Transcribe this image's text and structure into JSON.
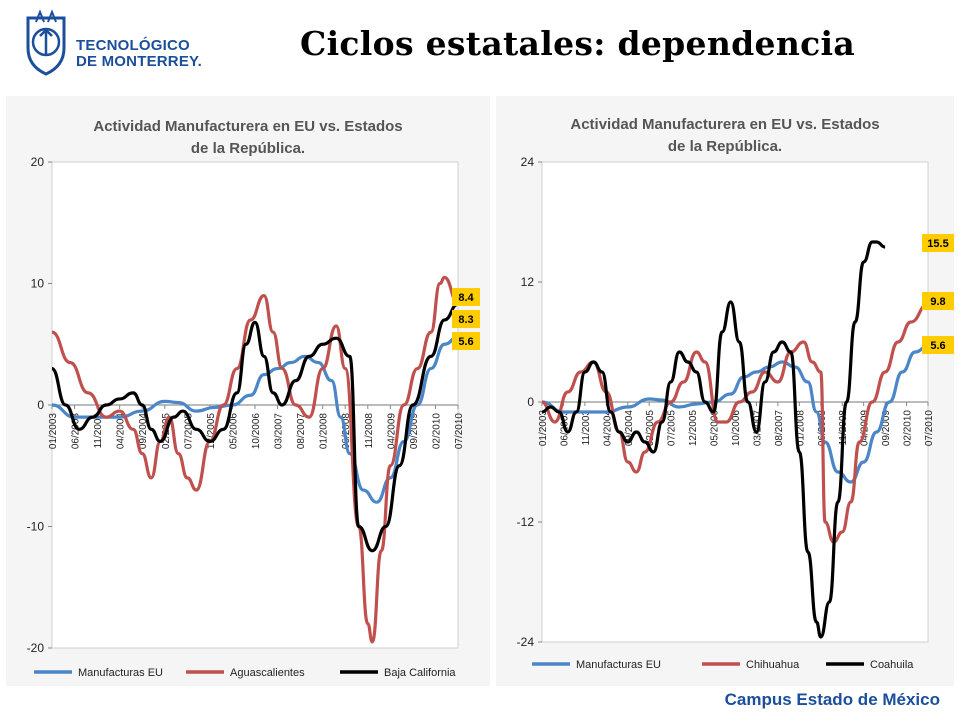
{
  "logo": {
    "line1": "TECNOLÓGICO",
    "line2": "DE MONTERREY."
  },
  "slide_title": "Ciclos estatales: dependencia",
  "footer": "Campus Estado de México",
  "colors": {
    "blue": "#4a86c8",
    "red": "#c0504d",
    "black": "#000000",
    "label_bg": "#ffcc00",
    "logo_blue": "#1b4f9c"
  },
  "chart_data": [
    {
      "type": "line",
      "title_line1": "Actividad Manufacturera  en EU vs. Estados",
      "title_line2": "de la República.",
      "xlabel": "",
      "ylabel": "",
      "ylim": [
        -20,
        20
      ],
      "yticks": [
        "20",
        "10",
        "0",
        "-10",
        "-20"
      ],
      "ytick_values": [
        20,
        10,
        0,
        -10,
        -20
      ],
      "x_tick_labels": [
        "01/2003",
        "06/2003",
        "11/2003",
        "04/2004",
        "09/2004",
        "02/2005",
        "07/2005",
        "12/2005",
        "05/2006",
        "10/2006",
        "03/2007",
        "08/2007",
        "01/2008",
        "06/2008",
        "11/2008",
        "04/2009",
        "09/2009",
        "02/2010",
        "07/2010"
      ],
      "x_range": [
        0,
        90
      ],
      "end_labels": [
        "8.4",
        "8.3",
        "5.6"
      ],
      "end_label_values": [
        8.4,
        8.3,
        5.6
      ],
      "legend": [
        "Manufacturas EU",
        "Aguascalientes",
        "Baja California"
      ],
      "series": [
        {
          "name": "Manufacturas EU",
          "color": "#4a86c8",
          "points": [
            [
              0,
              0
            ],
            [
              5,
              -1
            ],
            [
              10,
              -1
            ],
            [
              15,
              -1
            ],
            [
              20,
              -0.5
            ],
            [
              25,
              0.3
            ],
            [
              28,
              0.2
            ],
            [
              32,
              -0.5
            ],
            [
              36,
              -0.2
            ],
            [
              40,
              0
            ],
            [
              44,
              0.8
            ],
            [
              47,
              2.5
            ],
            [
              50,
              3
            ],
            [
              53,
              3.5
            ],
            [
              56,
              4
            ],
            [
              59,
              3.5
            ],
            [
              62,
              2
            ],
            [
              64,
              -1
            ],
            [
              66,
              -4
            ],
            [
              69,
              -7
            ],
            [
              72,
              -8
            ],
            [
              75,
              -6
            ],
            [
              78,
              -3
            ],
            [
              81,
              0
            ],
            [
              84,
              3
            ],
            [
              87,
              5
            ],
            [
              90,
              5.6
            ]
          ]
        },
        {
          "name": "Aguascalientes",
          "color": "#c0504d",
          "points": [
            [
              0,
              6
            ],
            [
              4,
              3.5
            ],
            [
              8,
              1
            ],
            [
              12,
              -1
            ],
            [
              15,
              -0.5
            ],
            [
              18,
              -2
            ],
            [
              20,
              -4
            ],
            [
              22,
              -6
            ],
            [
              24,
              -3
            ],
            [
              26,
              -1
            ],
            [
              28,
              -4
            ],
            [
              30,
              -6
            ],
            [
              32,
              -7
            ],
            [
              35,
              -3
            ],
            [
              38,
              0
            ],
            [
              41,
              3
            ],
            [
              44,
              7
            ],
            [
              47,
              9
            ],
            [
              49,
              6
            ],
            [
              51,
              3
            ],
            [
              54,
              0
            ],
            [
              57,
              -1
            ],
            [
              60,
              3
            ],
            [
              63,
              6.5
            ],
            [
              65,
              3
            ],
            [
              68,
              -10
            ],
            [
              70,
              -18
            ],
            [
              71,
              -19.5
            ],
            [
              73,
              -12
            ],
            [
              75,
              -5
            ],
            [
              78,
              0
            ],
            [
              81,
              3
            ],
            [
              84,
              6
            ],
            [
              86,
              10
            ],
            [
              87,
              10.5
            ],
            [
              90,
              8.4
            ]
          ]
        },
        {
          "name": "Baja California",
          "color": "#000000",
          "points": [
            [
              0,
              3
            ],
            [
              3,
              0
            ],
            [
              6,
              -2
            ],
            [
              9,
              -1
            ],
            [
              12,
              0
            ],
            [
              15,
              0.5
            ],
            [
              18,
              1
            ],
            [
              20,
              0
            ],
            [
              22,
              -2
            ],
            [
              24,
              -3
            ],
            [
              27,
              -1
            ],
            [
              29,
              -0.5
            ],
            [
              32,
              -2
            ],
            [
              35,
              -3
            ],
            [
              38,
              -2
            ],
            [
              41,
              1
            ],
            [
              43,
              5
            ],
            [
              45,
              6.8
            ],
            [
              47,
              4
            ],
            [
              49,
              1
            ],
            [
              51,
              0
            ],
            [
              54,
              2
            ],
            [
              57,
              4
            ],
            [
              60,
              5
            ],
            [
              63,
              5.5
            ],
            [
              66,
              4
            ],
            [
              68,
              -10
            ],
            [
              71,
              -12
            ],
            [
              74,
              -10
            ],
            [
              77,
              -5
            ],
            [
              80,
              0
            ],
            [
              84,
              4
            ],
            [
              87,
              7
            ],
            [
              90,
              8.3
            ]
          ]
        }
      ]
    },
    {
      "type": "line",
      "title_line1": "Actividad Manufacturera en EU vs. Estados",
      "title_line2": "de la República.",
      "xlabel": "",
      "ylabel": "",
      "ylim": [
        -24,
        24
      ],
      "yticks": [
        "24",
        "12",
        "0",
        "-12",
        "-24"
      ],
      "ytick_values": [
        24,
        12,
        0,
        -12,
        -24
      ],
      "x_tick_labels": [
        "01/2003",
        "06/2003",
        "11/2003",
        "04/2004",
        "09/2004",
        "02/2005",
        "07/2005",
        "12/2005",
        "05/2006",
        "10/2006",
        "03/2007",
        "08/2007",
        "01/2008",
        "06/2008",
        "11/2008",
        "04/2009",
        "09/2009",
        "02/2010",
        "07/2010"
      ],
      "x_range": [
        0,
        90
      ],
      "end_labels": [
        "15.5",
        "9.8",
        "5.6"
      ],
      "end_label_values": [
        15.5,
        9.8,
        5.6
      ],
      "legend": [
        "Manufacturas EU",
        "Chihuahua",
        "Coahuila"
      ],
      "series": [
        {
          "name": "Manufacturas EU",
          "color": "#4a86c8",
          "points": [
            [
              0,
              0
            ],
            [
              5,
              -1
            ],
            [
              10,
              -1
            ],
            [
              15,
              -1
            ],
            [
              20,
              -0.5
            ],
            [
              25,
              0.3
            ],
            [
              28,
              0.2
            ],
            [
              32,
              -0.5
            ],
            [
              36,
              -0.2
            ],
            [
              40,
              0
            ],
            [
              44,
              0.8
            ],
            [
              47,
              2.5
            ],
            [
              50,
              3
            ],
            [
              53,
              3.5
            ],
            [
              56,
              4
            ],
            [
              59,
              3.5
            ],
            [
              62,
              2
            ],
            [
              64,
              -1
            ],
            [
              66,
              -4
            ],
            [
              69,
              -7
            ],
            [
              72,
              -8
            ],
            [
              75,
              -6
            ],
            [
              78,
              -3
            ],
            [
              81,
              0
            ],
            [
              84,
              3
            ],
            [
              87,
              5
            ],
            [
              90,
              5.6
            ]
          ]
        },
        {
          "name": "Chihuahua",
          "color": "#c0504d",
          "points": [
            [
              0,
              0
            ],
            [
              3,
              -2
            ],
            [
              6,
              1
            ],
            [
              9,
              3
            ],
            [
              12,
              4
            ],
            [
              15,
              1
            ],
            [
              18,
              -3
            ],
            [
              20,
              -6
            ],
            [
              22,
              -7
            ],
            [
              24,
              -5
            ],
            [
              27,
              -2
            ],
            [
              30,
              0
            ],
            [
              33,
              2
            ],
            [
              36,
              5
            ],
            [
              38,
              4
            ],
            [
              41,
              -2
            ],
            [
              43,
              -2
            ],
            [
              46,
              0
            ],
            [
              49,
              1
            ],
            [
              52,
              3
            ],
            [
              55,
              2
            ],
            [
              58,
              5
            ],
            [
              61,
              6
            ],
            [
              63,
              4
            ],
            [
              65,
              3
            ],
            [
              66,
              -12
            ],
            [
              68,
              -14
            ],
            [
              70,
              -13
            ],
            [
              72,
              -10
            ],
            [
              74,
              -4
            ],
            [
              77,
              0
            ],
            [
              80,
              3
            ],
            [
              83,
              6
            ],
            [
              86,
              8
            ],
            [
              90,
              9.8
            ]
          ]
        },
        {
          "name": "Coahuila",
          "color": "#000000",
          "points": [
            [
              0,
              -1
            ],
            [
              2,
              -0.5
            ],
            [
              4,
              -1
            ],
            [
              6,
              -3
            ],
            [
              8,
              -1
            ],
            [
              10,
              3
            ],
            [
              12,
              4
            ],
            [
              14,
              3
            ],
            [
              16,
              -1
            ],
            [
              18,
              -3
            ],
            [
              20,
              -4
            ],
            [
              22,
              -3
            ],
            [
              24,
              -4
            ],
            [
              26,
              -5
            ],
            [
              28,
              -2
            ],
            [
              30,
              2
            ],
            [
              32,
              5
            ],
            [
              34,
              4
            ],
            [
              36,
              3
            ],
            [
              38,
              0
            ],
            [
              40,
              -1
            ],
            [
              42,
              7
            ],
            [
              44,
              10
            ],
            [
              46,
              6
            ],
            [
              48,
              0
            ],
            [
              50,
              -3
            ],
            [
              52,
              2
            ],
            [
              54,
              5
            ],
            [
              56,
              6
            ],
            [
              58,
              5
            ],
            [
              60,
              -5
            ],
            [
              62,
              -15
            ],
            [
              64,
              -22
            ],
            [
              65,
              -23.5
            ],
            [
              67,
              -20
            ],
            [
              69,
              -10
            ],
            [
              71,
              0
            ],
            [
              73,
              8
            ],
            [
              75,
              14
            ],
            [
              77,
              16
            ],
            [
              78,
              16
            ],
            [
              80,
              15.5
            ]
          ]
        }
      ]
    }
  ]
}
